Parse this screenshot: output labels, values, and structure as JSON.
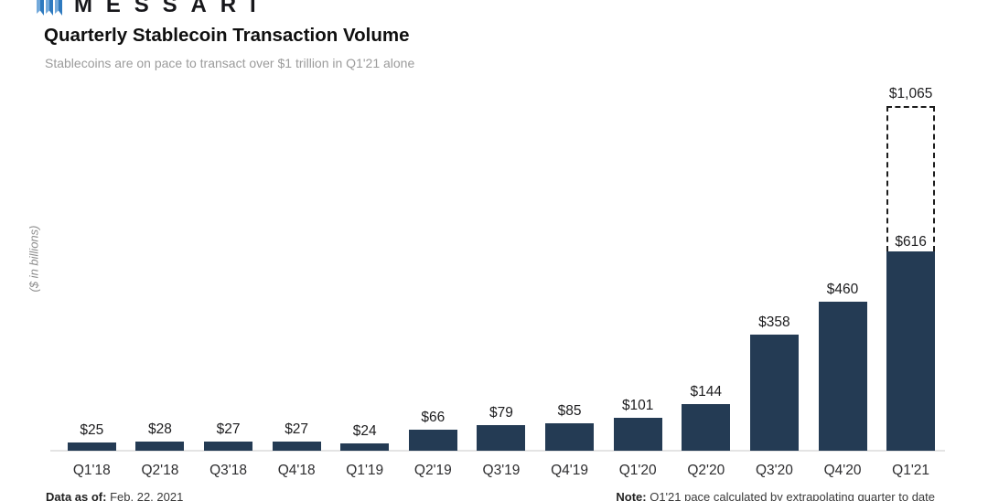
{
  "logo": {
    "brand": "MESSARI",
    "icon": "messari-ribbons-icon"
  },
  "header": {
    "title": "Quarterly Stablecoin Transaction Volume",
    "subtitle": "Stablecoins are on pace to transact over $1 trillion in Q1'21 alone"
  },
  "chart_data": {
    "type": "bar",
    "title": "Quarterly Stablecoin Transaction Volume",
    "subtitle": "Stablecoins are on pace to transact over $1 trillion in Q1'21 alone",
    "xlabel": "",
    "ylabel": "($ in billions)",
    "unit": "$ billions",
    "grid": false,
    "legend": "none",
    "bar_color": "#243b54",
    "ylim": [
      0,
      1120
    ],
    "categories": [
      "Q1'18",
      "Q2'18",
      "Q3'18",
      "Q4'18",
      "Q1'19",
      "Q2'19",
      "Q3'19",
      "Q4'19",
      "Q1'20",
      "Q2'20",
      "Q3'20",
      "Q4'20",
      "Q1'21"
    ],
    "values": [
      25,
      28,
      27,
      27,
      24,
      66,
      79,
      85,
      101,
      144,
      358,
      460,
      616
    ],
    "labels": [
      "$25",
      "$28",
      "$27",
      "$27",
      "$24",
      "$66",
      "$79",
      "$85",
      "$101",
      "$144",
      "$358",
      "$460",
      "$616"
    ],
    "projection": {
      "category": "Q1'21",
      "value": 1065,
      "label": "$1,065",
      "style": "dashed-outline",
      "annotation": "extrapolated quarter-to-date pace"
    }
  },
  "footer": {
    "data_as_of_label": "Data as of:",
    "data_as_of_value": "Feb. 22, 2021",
    "note_label": "Note:",
    "note_value": "Q1'21 pace calculated by extrapolating quarter to date"
  }
}
